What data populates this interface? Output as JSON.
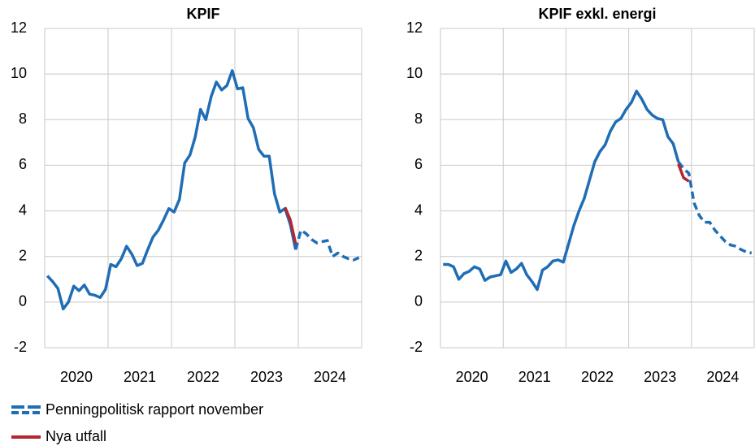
{
  "chart_data": [
    {
      "type": "line",
      "title": "KPIF",
      "categories": [
        null,
        null,
        null,
        null,
        null,
        null,
        "2020",
        null,
        null,
        null,
        null,
        null,
        null,
        null,
        null,
        null,
        null,
        null,
        "2021",
        null,
        null,
        null,
        null,
        null,
        null,
        null,
        null,
        null,
        null,
        null,
        "2022",
        null,
        null,
        null,
        null,
        null,
        null,
        null,
        null,
        null,
        null,
        null,
        "2023",
        null,
        null,
        null,
        null,
        null,
        null,
        null,
        null,
        null,
        null,
        null,
        "2024",
        null,
        null,
        null,
        null,
        null
      ],
      "ylim": [
        -2,
        12
      ],
      "yticks": [
        -2,
        0,
        2,
        4,
        6,
        8,
        10,
        12
      ],
      "grid": true,
      "series": [
        {
          "name": "Penningpolitisk rapport november",
          "color": "#1f6db5",
          "values": [
            1.15,
            0.9,
            0.6,
            -0.3,
            0.0,
            0.7,
            0.5,
            0.75,
            0.35,
            0.3,
            0.2,
            0.55,
            1.65,
            1.55,
            1.9,
            2.45,
            2.1,
            1.6,
            1.7,
            2.3,
            2.85,
            3.15,
            3.6,
            4.1,
            3.95,
            4.5,
            6.1,
            6.45,
            7.25,
            8.45,
            8.0,
            9.0,
            9.65,
            9.3,
            9.5,
            10.15,
            9.35,
            9.4,
            8.05,
            7.65,
            6.7,
            6.4,
            6.4,
            4.75,
            3.95,
            4.1,
            3.4,
            2.3,
            null,
            null,
            null,
            null,
            null,
            null,
            null,
            null,
            null,
            null,
            null,
            null
          ]
        },
        {
          "color": "#1f6db5",
          "dash": true,
          "values": [
            null,
            null,
            null,
            null,
            null,
            null,
            null,
            null,
            null,
            null,
            null,
            null,
            null,
            null,
            null,
            null,
            null,
            null,
            null,
            null,
            null,
            null,
            null,
            null,
            null,
            null,
            null,
            null,
            null,
            null,
            null,
            null,
            null,
            null,
            null,
            null,
            null,
            null,
            null,
            null,
            null,
            null,
            null,
            null,
            null,
            null,
            null,
            2.3,
            3.15,
            3.0,
            2.75,
            2.6,
            2.65,
            2.7,
            2.0,
            2.15,
            2.0,
            1.9,
            1.85,
            1.95
          ]
        },
        {
          "name": "Nya utfall",
          "color": "#b5262f",
          "values": [
            null,
            null,
            null,
            null,
            null,
            null,
            null,
            null,
            null,
            null,
            null,
            null,
            null,
            null,
            null,
            null,
            null,
            null,
            null,
            null,
            null,
            null,
            null,
            null,
            null,
            null,
            null,
            null,
            null,
            null,
            null,
            null,
            null,
            null,
            null,
            null,
            null,
            null,
            null,
            null,
            null,
            null,
            null,
            null,
            null,
            4.15,
            3.6,
            2.55,
            null,
            null,
            null,
            null,
            null,
            null,
            null,
            null,
            null,
            null,
            null,
            null
          ]
        }
      ]
    },
    {
      "type": "line",
      "title": "KPIF exkl. energi",
      "categories": [
        null,
        null,
        null,
        null,
        null,
        null,
        "2020",
        null,
        null,
        null,
        null,
        null,
        null,
        null,
        null,
        null,
        null,
        null,
        "2021",
        null,
        null,
        null,
        null,
        null,
        null,
        null,
        null,
        null,
        null,
        null,
        "2022",
        null,
        null,
        null,
        null,
        null,
        null,
        null,
        null,
        null,
        null,
        null,
        "2023",
        null,
        null,
        null,
        null,
        null,
        null,
        null,
        null,
        null,
        null,
        null,
        "2024",
        null,
        null,
        null,
        null,
        null
      ],
      "ylim": [
        -2,
        12
      ],
      "yticks": [
        -2,
        0,
        2,
        4,
        6,
        8,
        10,
        12
      ],
      "grid": true,
      "series": [
        {
          "color": "#1f6db5",
          "values": [
            1.65,
            1.65,
            1.55,
            1.0,
            1.25,
            1.35,
            1.55,
            1.45,
            0.95,
            1.1,
            1.15,
            1.2,
            1.8,
            1.3,
            1.45,
            1.7,
            1.2,
            0.9,
            0.55,
            1.4,
            1.55,
            1.8,
            1.85,
            1.75,
            2.55,
            3.35,
            4.0,
            4.55,
            5.35,
            6.15,
            6.6,
            6.9,
            7.5,
            7.9,
            8.05,
            8.45,
            8.75,
            9.25,
            8.9,
            8.45,
            8.2,
            8.05,
            8.0,
            7.25,
            6.95,
            6.15,
            null,
            null,
            null,
            null,
            null,
            null,
            null,
            null,
            null,
            null,
            null,
            null,
            null,
            null
          ]
        },
        {
          "color": "#1f6db5",
          "dash": true,
          "values": [
            null,
            null,
            null,
            null,
            null,
            null,
            null,
            null,
            null,
            null,
            null,
            null,
            null,
            null,
            null,
            null,
            null,
            null,
            null,
            null,
            null,
            null,
            null,
            null,
            null,
            null,
            null,
            null,
            null,
            null,
            null,
            null,
            null,
            null,
            null,
            null,
            null,
            null,
            null,
            null,
            null,
            null,
            null,
            null,
            null,
            6.15,
            5.85,
            5.65,
            4.35,
            3.8,
            3.5,
            3.5,
            3.15,
            2.9,
            2.65,
            2.5,
            2.45,
            2.3,
            2.2,
            2.15
          ]
        },
        {
          "color": "#b5262f",
          "values": [
            null,
            null,
            null,
            null,
            null,
            null,
            null,
            null,
            null,
            null,
            null,
            null,
            null,
            null,
            null,
            null,
            null,
            null,
            null,
            null,
            null,
            null,
            null,
            null,
            null,
            null,
            null,
            null,
            null,
            null,
            null,
            null,
            null,
            null,
            null,
            null,
            null,
            null,
            null,
            null,
            null,
            null,
            null,
            null,
            null,
            6.05,
            5.45,
            5.3,
            null,
            null,
            null,
            null,
            null,
            null,
            null,
            null,
            null,
            null,
            null,
            null
          ]
        }
      ]
    }
  ]
}
